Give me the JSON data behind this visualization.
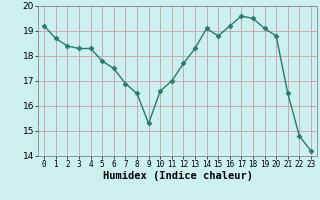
{
  "x": [
    0,
    1,
    2,
    3,
    4,
    5,
    6,
    7,
    8,
    9,
    10,
    11,
    12,
    13,
    14,
    15,
    16,
    17,
    18,
    19,
    20,
    21,
    22,
    23
  ],
  "y": [
    19.2,
    18.7,
    18.4,
    18.3,
    18.3,
    17.8,
    17.5,
    16.9,
    16.5,
    15.3,
    16.6,
    17.0,
    17.7,
    18.3,
    19.1,
    18.8,
    19.2,
    19.6,
    19.5,
    19.1,
    18.8,
    16.5,
    14.8,
    14.2
  ],
  "line_color": "#2a7a6a",
  "marker_color": "#2a7a6a",
  "bg_color": "#ccf0ee",
  "grid_color": "#c8a8b0",
  "xlabel": "Humidex (Indice chaleur)",
  "ylim": [
    14,
    20
  ],
  "xlim": [
    -0.5,
    23.5
  ],
  "yticks": [
    14,
    15,
    16,
    17,
    18,
    19,
    20
  ],
  "xticks": [
    0,
    1,
    2,
    3,
    4,
    5,
    6,
    7,
    8,
    9,
    10,
    11,
    12,
    13,
    14,
    15,
    16,
    17,
    18,
    19,
    20,
    21,
    22,
    23
  ],
  "ytick_fontsize": 6.5,
  "xtick_fontsize": 5.5,
  "xlabel_fontsize": 7.5,
  "linewidth": 1.0,
  "markersize": 2.5
}
